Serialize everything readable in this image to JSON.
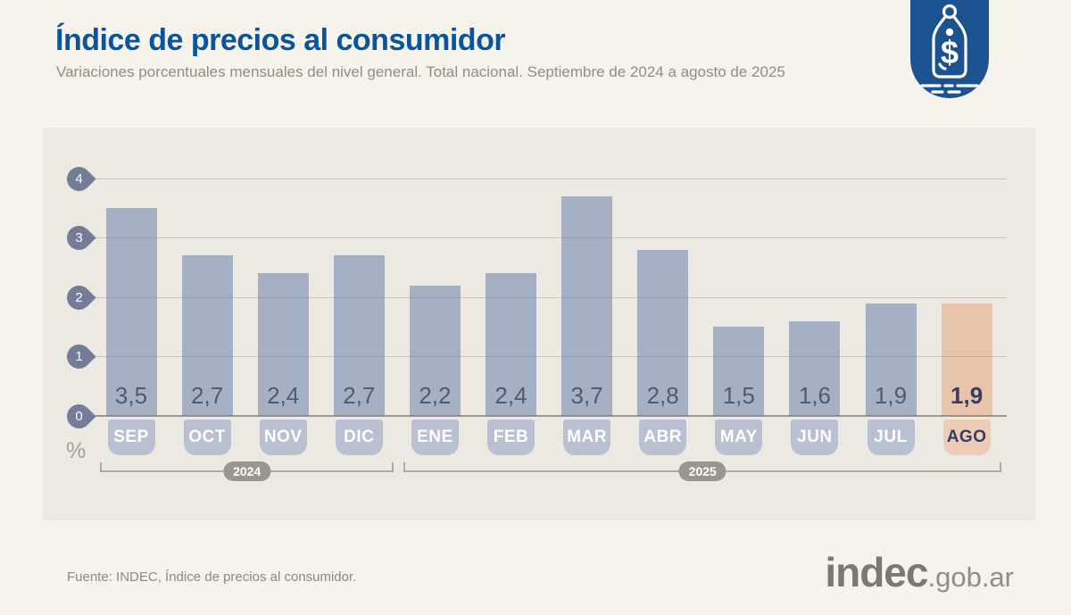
{
  "header": {
    "title": "Índice de precios al consumidor",
    "subtitle": "Variaciones porcentuales mensuales del nivel general. Total nacional. Septiembre de 2024 a agosto de 2025"
  },
  "logo": {
    "currency_symbol": "$"
  },
  "chart_data": {
    "type": "bar",
    "title": "Índice de precios al consumidor",
    "subtitle": "Variaciones porcentuales mensuales del nivel general. Total nacional. Septiembre de 2024 a agosto de 2025",
    "unit_label": "%",
    "categories": [
      "SEP",
      "OCT",
      "NOV",
      "DIC",
      "ENE",
      "FEB",
      "MAR",
      "ABR",
      "MAY",
      "JUN",
      "JUL",
      "AGO"
    ],
    "values": [
      3.5,
      2.7,
      2.4,
      2.7,
      2.2,
      2.4,
      3.7,
      2.8,
      1.5,
      1.6,
      1.9,
      1.9
    ],
    "value_labels": [
      "3,5",
      "2,7",
      "2,4",
      "2,7",
      "2,2",
      "2,4",
      "3,7",
      "2,8",
      "1,5",
      "1,6",
      "1,9",
      "1,9"
    ],
    "highlight_index": 11,
    "ylim": [
      0,
      4
    ],
    "yticks": [
      0,
      1,
      2,
      3,
      4
    ],
    "grid": true,
    "legend": false,
    "year_groups": [
      {
        "label": "2024",
        "start": 0,
        "end": 3
      },
      {
        "label": "2025",
        "start": 4,
        "end": 11
      }
    ],
    "colors": {
      "bar": "#a6b0c4",
      "badge": "#b8c0d1",
      "highlight_bar": "#e9c4ad",
      "highlight_badge": "#edcdb8",
      "value_text": "#525a72",
      "highlight_text": "#373c66",
      "badge_text": "#ffffff",
      "pin": "#747c97",
      "year": "#9b968c",
      "panel_bg": "#ece9e2",
      "page_bg": "#f6f3ec",
      "title_blue": "#0b539b"
    }
  },
  "footer": {
    "source": "Fuente: INDEC, Índice de precios al consumidor.",
    "logo_main": "indec",
    "logo_suffix": ".gob.ar"
  }
}
